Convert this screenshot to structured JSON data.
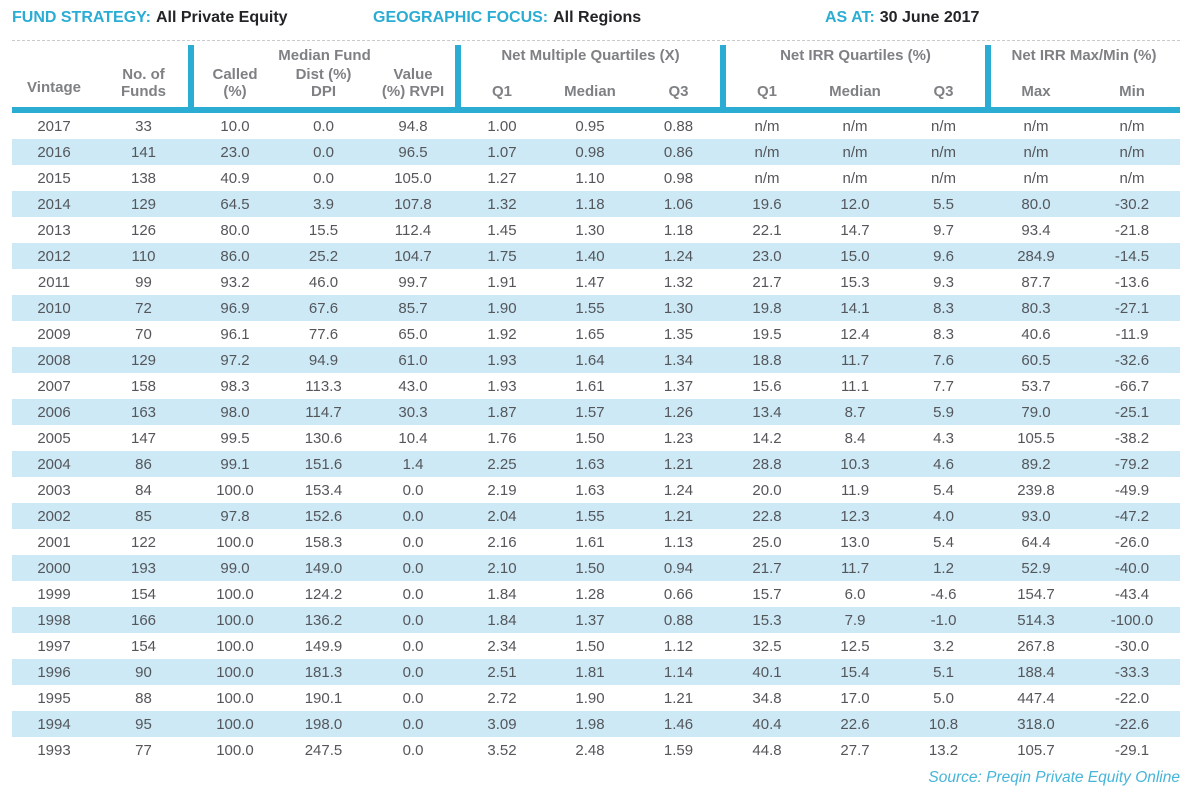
{
  "meta": {
    "fund_strategy": {
      "label": "FUND STRATEGY:",
      "value": "All Private Equity"
    },
    "geographic_focus": {
      "label": "GEOGRAPHIC FOCUS:",
      "value": "All Regions"
    },
    "as_at": {
      "label": "AS AT:",
      "value": "30 June 2017"
    }
  },
  "colors": {
    "accent": "#2badd3",
    "row_stripe": "#cde9f6",
    "header_text": "#7e8083",
    "data_text": "#54565a"
  },
  "table": {
    "group_headers": {
      "median_fund": "Median Fund",
      "net_multiple_quartiles": "Net Multiple Quartiles (X)",
      "net_irr_quartiles": "Net IRR Quartiles (%)",
      "net_irr_max_min": "Net IRR Max/Min (%)"
    },
    "column_headers": [
      "Vintage",
      "No. of\nFunds",
      "Called\n(%)",
      "Dist (%)\nDPI",
      "Value\n(%) RVPI",
      "Q1",
      "Median",
      "Q3",
      "Q1",
      "Median",
      "Q3",
      "Max",
      "Min"
    ],
    "rows": [
      [
        "2017",
        "33",
        "10.0",
        "0.0",
        "94.8",
        "1.00",
        "0.95",
        "0.88",
        "n/m",
        "n/m",
        "n/m",
        "n/m",
        "n/m"
      ],
      [
        "2016",
        "141",
        "23.0",
        "0.0",
        "96.5",
        "1.07",
        "0.98",
        "0.86",
        "n/m",
        "n/m",
        "n/m",
        "n/m",
        "n/m"
      ],
      [
        "2015",
        "138",
        "40.9",
        "0.0",
        "105.0",
        "1.27",
        "1.10",
        "0.98",
        "n/m",
        "n/m",
        "n/m",
        "n/m",
        "n/m"
      ],
      [
        "2014",
        "129",
        "64.5",
        "3.9",
        "107.8",
        "1.32",
        "1.18",
        "1.06",
        "19.6",
        "12.0",
        "5.5",
        "80.0",
        "-30.2"
      ],
      [
        "2013",
        "126",
        "80.0",
        "15.5",
        "112.4",
        "1.45",
        "1.30",
        "1.18",
        "22.1",
        "14.7",
        "9.7",
        "93.4",
        "-21.8"
      ],
      [
        "2012",
        "110",
        "86.0",
        "25.2",
        "104.7",
        "1.75",
        "1.40",
        "1.24",
        "23.0",
        "15.0",
        "9.6",
        "284.9",
        "-14.5"
      ],
      [
        "2011",
        "99",
        "93.2",
        "46.0",
        "99.7",
        "1.91",
        "1.47",
        "1.32",
        "21.7",
        "15.3",
        "9.3",
        "87.7",
        "-13.6"
      ],
      [
        "2010",
        "72",
        "96.9",
        "67.6",
        "85.7",
        "1.90",
        "1.55",
        "1.30",
        "19.8",
        "14.1",
        "8.3",
        "80.3",
        "-27.1"
      ],
      [
        "2009",
        "70",
        "96.1",
        "77.6",
        "65.0",
        "1.92",
        "1.65",
        "1.35",
        "19.5",
        "12.4",
        "8.3",
        "40.6",
        "-11.9"
      ],
      [
        "2008",
        "129",
        "97.2",
        "94.9",
        "61.0",
        "1.93",
        "1.64",
        "1.34",
        "18.8",
        "11.7",
        "7.6",
        "60.5",
        "-32.6"
      ],
      [
        "2007",
        "158",
        "98.3",
        "113.3",
        "43.0",
        "1.93",
        "1.61",
        "1.37",
        "15.6",
        "11.1",
        "7.7",
        "53.7",
        "-66.7"
      ],
      [
        "2006",
        "163",
        "98.0",
        "114.7",
        "30.3",
        "1.87",
        "1.57",
        "1.26",
        "13.4",
        "8.7",
        "5.9",
        "79.0",
        "-25.1"
      ],
      [
        "2005",
        "147",
        "99.5",
        "130.6",
        "10.4",
        "1.76",
        "1.50",
        "1.23",
        "14.2",
        "8.4",
        "4.3",
        "105.5",
        "-38.2"
      ],
      [
        "2004",
        "86",
        "99.1",
        "151.6",
        "1.4",
        "2.25",
        "1.63",
        "1.21",
        "28.8",
        "10.3",
        "4.6",
        "89.2",
        "-79.2"
      ],
      [
        "2003",
        "84",
        "100.0",
        "153.4",
        "0.0",
        "2.19",
        "1.63",
        "1.24",
        "20.0",
        "11.9",
        "5.4",
        "239.8",
        "-49.9"
      ],
      [
        "2002",
        "85",
        "97.8",
        "152.6",
        "0.0",
        "2.04",
        "1.55",
        "1.21",
        "22.8",
        "12.3",
        "4.0",
        "93.0",
        "-47.2"
      ],
      [
        "2001",
        "122",
        "100.0",
        "158.3",
        "0.0",
        "2.16",
        "1.61",
        "1.13",
        "25.0",
        "13.0",
        "5.4",
        "64.4",
        "-26.0"
      ],
      [
        "2000",
        "193",
        "99.0",
        "149.0",
        "0.0",
        "2.10",
        "1.50",
        "0.94",
        "21.7",
        "11.7",
        "1.2",
        "52.9",
        "-40.0"
      ],
      [
        "1999",
        "154",
        "100.0",
        "124.2",
        "0.0",
        "1.84",
        "1.28",
        "0.66",
        "15.7",
        "6.0",
        "-4.6",
        "154.7",
        "-43.4"
      ],
      [
        "1998",
        "166",
        "100.0",
        "136.2",
        "0.0",
        "1.84",
        "1.37",
        "0.88",
        "15.3",
        "7.9",
        "-1.0",
        "514.3",
        "-100.0"
      ],
      [
        "1997",
        "154",
        "100.0",
        "149.9",
        "0.0",
        "2.34",
        "1.50",
        "1.12",
        "32.5",
        "12.5",
        "3.2",
        "267.8",
        "-30.0"
      ],
      [
        "1996",
        "90",
        "100.0",
        "181.3",
        "0.0",
        "2.51",
        "1.81",
        "1.14",
        "40.1",
        "15.4",
        "5.1",
        "188.4",
        "-33.3"
      ],
      [
        "1995",
        "88",
        "100.0",
        "190.1",
        "0.0",
        "2.72",
        "1.90",
        "1.21",
        "34.8",
        "17.0",
        "5.0",
        "447.4",
        "-22.0"
      ],
      [
        "1994",
        "95",
        "100.0",
        "198.0",
        "0.0",
        "3.09",
        "1.98",
        "1.46",
        "40.4",
        "22.6",
        "10.8",
        "318.0",
        "-22.6"
      ],
      [
        "1993",
        "77",
        "100.0",
        "247.5",
        "0.0",
        "3.52",
        "2.48",
        "1.59",
        "44.8",
        "27.7",
        "13.2",
        "105.7",
        "-29.1"
      ]
    ]
  },
  "source": "Source: Preqin Private Equity Online"
}
